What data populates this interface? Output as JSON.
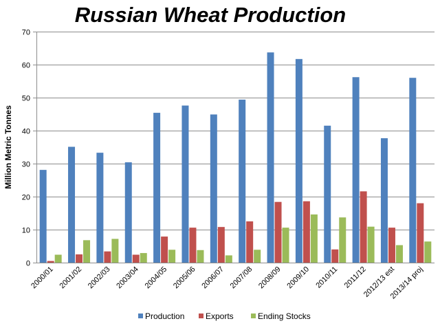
{
  "chart_data": {
    "type": "bar",
    "title": "Russian Wheat Production",
    "xlabel": "",
    "ylabel": "Million Metric Tonnes",
    "ylim": [
      0,
      70
    ],
    "yticks": [
      0,
      10,
      20,
      30,
      40,
      50,
      60,
      70
    ],
    "grid": true,
    "legend_position": "bottom",
    "categories": [
      "2000/01",
      "2001/02",
      "2002/03",
      "2003/04",
      "2004/05",
      "2005/06",
      "2006/07",
      "2007/08",
      "2008/09",
      "2009/10",
      "2010/11",
      "2011/12",
      "2012/13 est",
      "2013/14 proj"
    ],
    "series": [
      {
        "name": "Production",
        "color": "#4f81bd",
        "values": [
          28.1,
          35.1,
          33.3,
          30.4,
          45.4,
          47.6,
          44.9,
          49.4,
          63.7,
          61.7,
          41.5,
          56.2,
          37.7,
          56.0
        ]
      },
      {
        "name": "Exports",
        "color": "#c0504d",
        "values": [
          0.5,
          2.5,
          3.4,
          2.4,
          7.9,
          10.6,
          10.8,
          12.5,
          18.4,
          18.6,
          4.0,
          21.6,
          10.6,
          18.0
        ]
      },
      {
        "name": "Ending Stocks",
        "color": "#9bbb59",
        "values": [
          2.4,
          6.8,
          7.2,
          2.9,
          3.9,
          3.8,
          2.2,
          3.9,
          10.6,
          14.6,
          13.7,
          10.9,
          5.3,
          6.4
        ]
      }
    ]
  }
}
